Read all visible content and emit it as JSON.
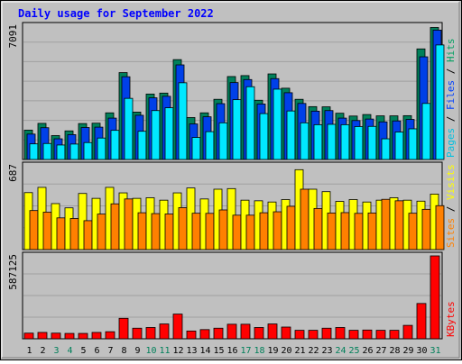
{
  "chart_data": {
    "type": "bar",
    "title": "Daily usage for September 2022",
    "categories": [
      "1",
      "2",
      "3",
      "4",
      "5",
      "6",
      "7",
      "8",
      "9",
      "10",
      "11",
      "12",
      "13",
      "14",
      "15",
      "16",
      "17",
      "18",
      "19",
      "20",
      "21",
      "22",
      "23",
      "24",
      "25",
      "26",
      "27",
      "28",
      "29",
      "30",
      "31"
    ],
    "weekend_days": [
      "3",
      "4",
      "10",
      "11",
      "17",
      "18",
      "24",
      "25",
      "31"
    ],
    "panels": [
      {
        "id": "hits-files-pages",
        "max_label": "7091",
        "ymax": 7091,
        "series_labels": [
          {
            "name": "Pages",
            "color": "#00c0e0"
          },
          {
            "name": "Files",
            "color": "#0040ff"
          },
          {
            "name": "Hits",
            "color": "#00a060"
          }
        ],
        "separator": " / ",
        "series": [
          {
            "name": "Hits",
            "color": "#00805a",
            "values": [
              1560,
              1920,
              1270,
              1520,
              1910,
              1930,
              2480,
              4620,
              2520,
              3480,
              3530,
              5310,
              2230,
              2480,
              3200,
              4410,
              4460,
              3150,
              4550,
              3790,
              3200,
              2810,
              2800,
              2460,
              2310,
              2390,
              2320,
              2320,
              2330,
              5880,
              7020
            ]
          },
          {
            "name": "Files",
            "color": "#0040e8",
            "values": [
              1350,
              1690,
              1100,
              1320,
              1700,
              1720,
              2200,
              4400,
              2350,
              3280,
              3360,
              5030,
              1890,
              2270,
              2970,
              4090,
              4250,
              2950,
              4300,
              3550,
              2980,
              2570,
              2600,
              2200,
              2070,
              2150,
              2000,
              2050,
              2130,
              5460,
              6880
            ]
          },
          {
            "name": "Pages",
            "color": "#00e8ff",
            "values": [
              830,
              850,
              770,
              820,
              900,
              1140,
              1550,
              3250,
              1500,
              2600,
              2750,
              4080,
              1170,
              1480,
              1950,
              3180,
              3870,
              2440,
              3740,
              2580,
              1950,
              1850,
              1870,
              1850,
              1750,
              1760,
              1100,
              1460,
              1630,
              2980,
              6090
            ]
          }
        ]
      },
      {
        "id": "visits-sites",
        "max_label": "687",
        "ymax": 687,
        "series_labels": [
          {
            "name": "Sites",
            "color": "#ff8000"
          },
          {
            "name": "Visits",
            "color": "#ffff00"
          }
        ],
        "separator": " / ",
        "series": [
          {
            "name": "Visits",
            "color": "#ffff00",
            "values": [
              467,
              510,
              377,
              342,
              460,
              420,
              510,
              465,
              420,
              425,
              405,
              465,
              505,
              415,
              495,
              500,
              405,
              400,
              390,
              410,
              655,
              495,
              475,
              395,
              410,
              390,
              405,
              425,
              405,
              397,
              455
            ]
          },
          {
            "name": "Sites",
            "color": "#ff8000",
            "values": [
              320,
              307,
              260,
              255,
              237,
              291,
              375,
              415,
              302,
              295,
              292,
              344,
              298,
              297,
              325,
              282,
              282,
              302,
              310,
              355,
              495,
              337,
              300,
              303,
              297,
              300,
              412,
              400,
              298,
              330,
              360
            ]
          }
        ]
      },
      {
        "id": "kbytes",
        "max_label": "587125",
        "ymax": 587125,
        "series_labels": [
          {
            "name": "KBytes",
            "color": "#ff0000"
          }
        ],
        "separator": "",
        "series": [
          {
            "name": "KBytes",
            "color": "#ff0000",
            "values": [
              40000,
              45000,
              40000,
              38000,
              38000,
              45000,
              50000,
              145000,
              75000,
              80000,
              105000,
              175000,
              55000,
              65000,
              75000,
              103000,
              103000,
              80000,
              105000,
              83000,
              60000,
              60000,
              75000,
              80000,
              60000,
              62000,
              60000,
              60000,
              95000,
              250000,
              587125
            ]
          }
        ]
      }
    ]
  }
}
